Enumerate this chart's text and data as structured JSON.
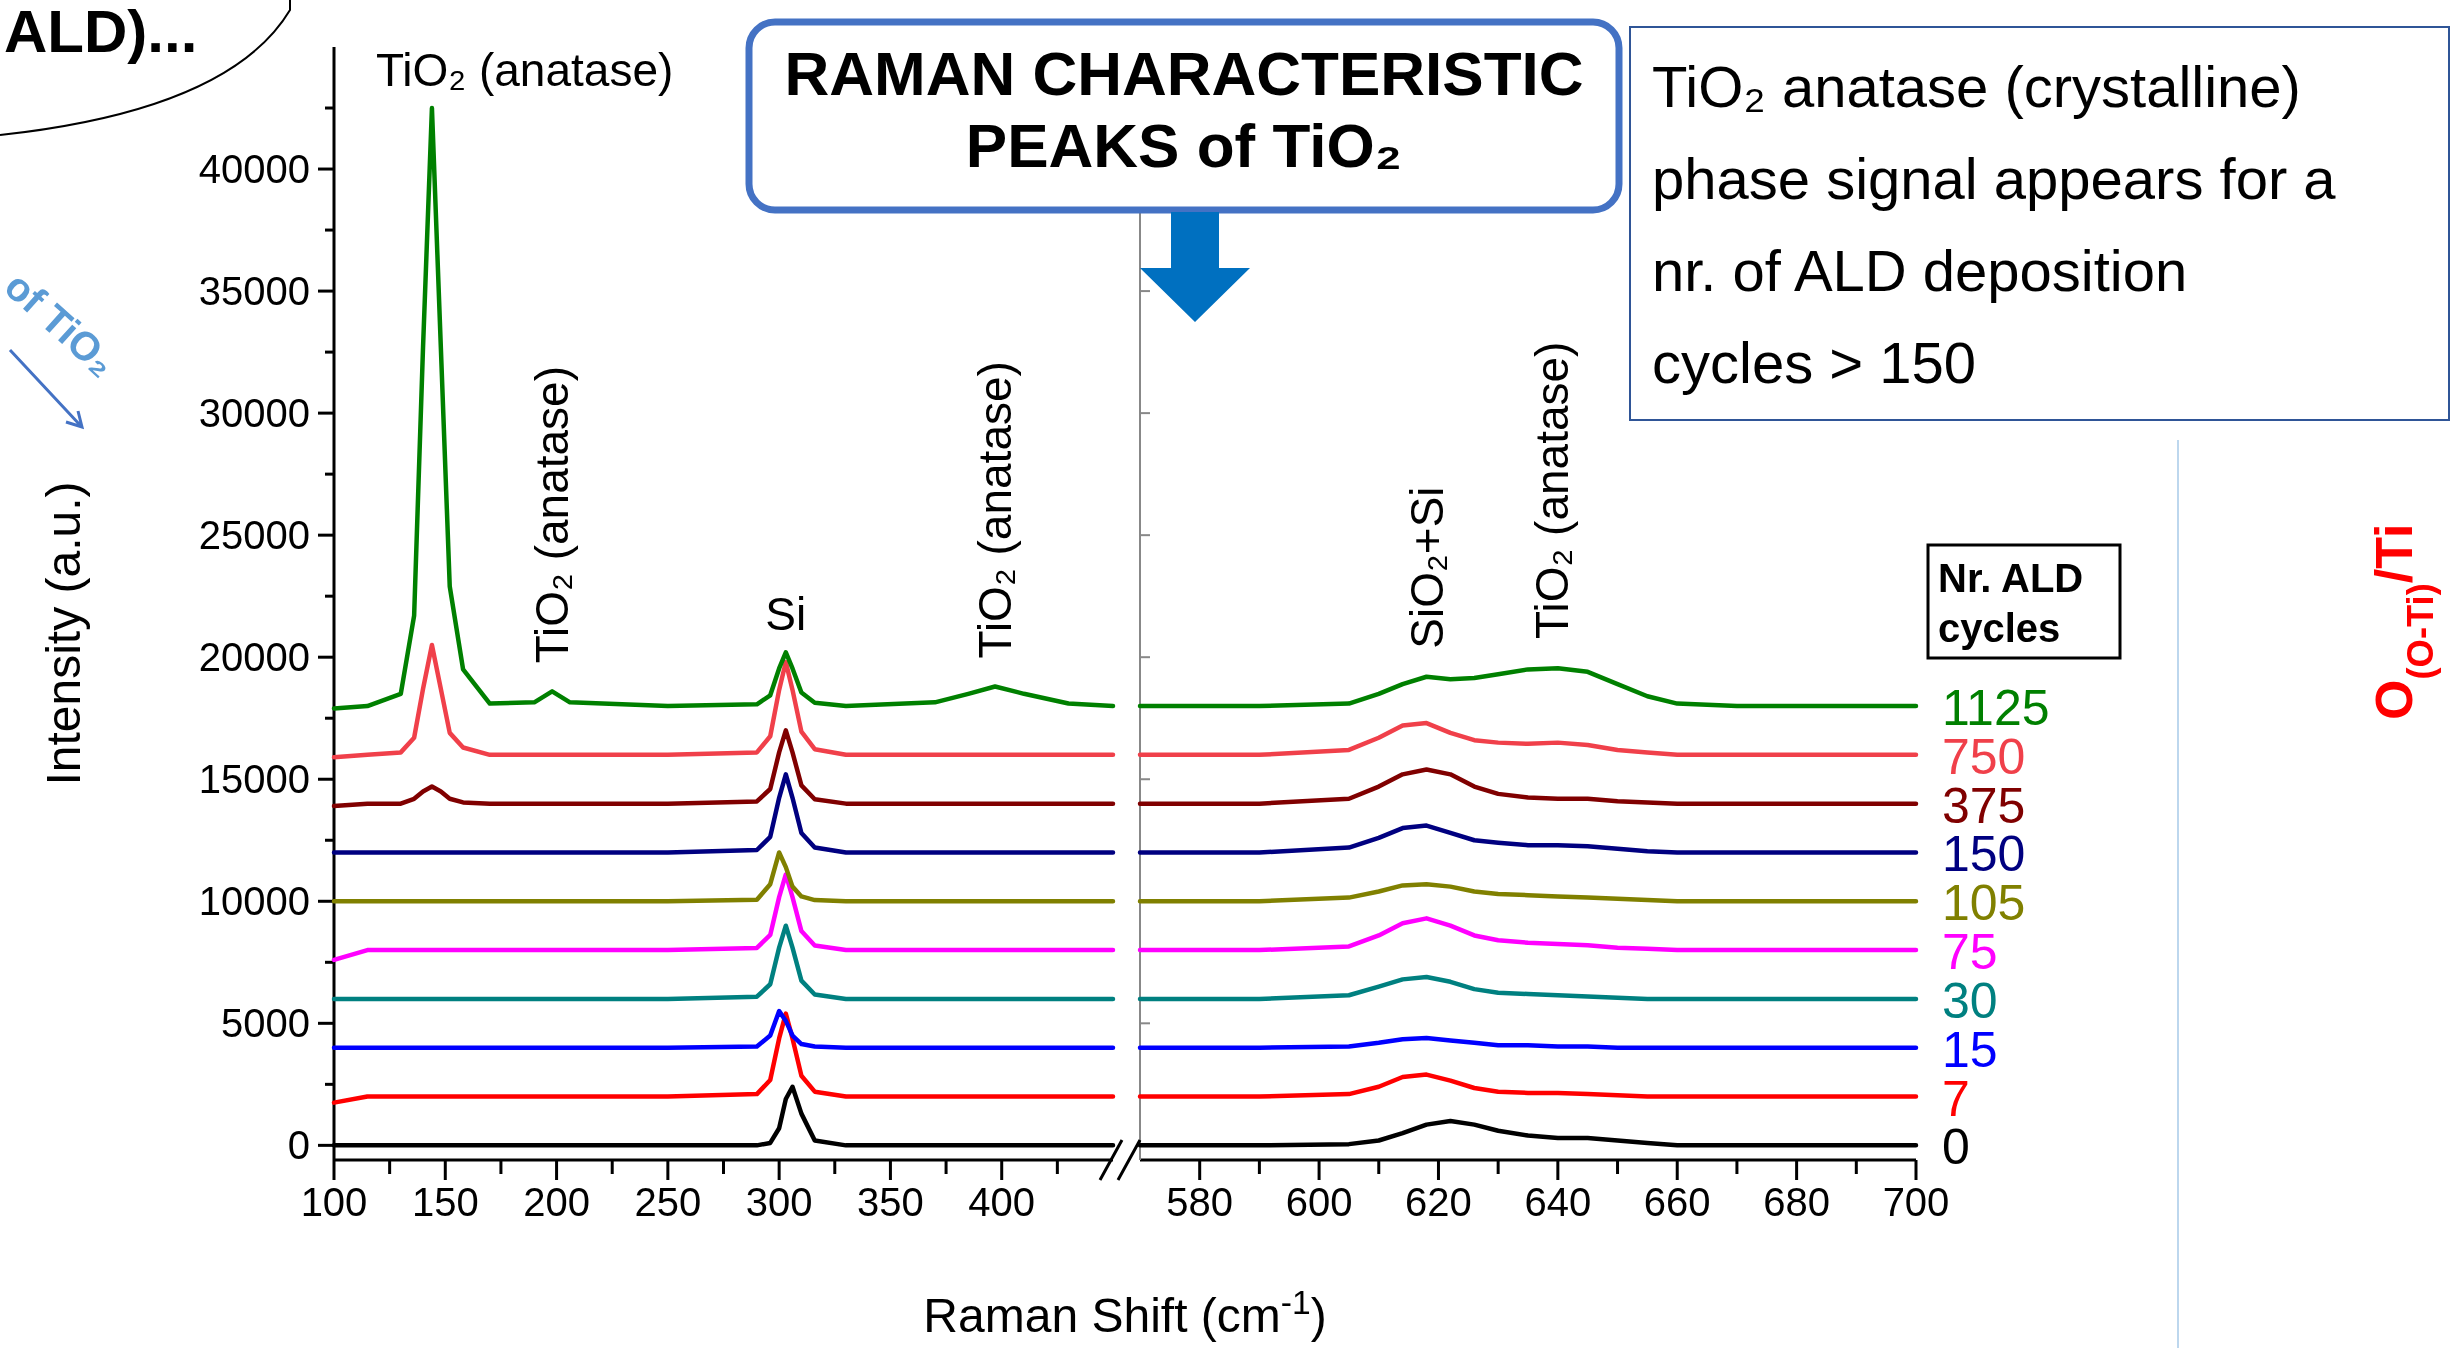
{
  "chart_data": [
    {
      "type": "line",
      "title": "RAMAN CHARACTERISTIC PEAKS of TiO₂",
      "xlabel": "Raman Shift (cm$^{-1}$)",
      "ylabel": "Intensity (a.u.)",
      "xlim": [
        100,
        450
      ],
      "xticks": [
        100,
        {
          "value": 125,
          "label": null
        },
        150,
        {
          "value": 175,
          "label": null
        },
        200,
        {
          "value": 225,
          "label": null
        },
        250,
        {
          "value": 275,
          "label": null
        },
        300,
        {
          "value": 325,
          "label": null
        },
        350,
        {
          "value": 375,
          "label": null
        },
        400,
        {
          "value": 425,
          "label": null
        }
      ],
      "ylim": [
        -600,
        45000
      ],
      "yticks": [
        0,
        {
          "value": 2500,
          "label": null
        },
        5000,
        {
          "value": 7500,
          "label": null
        },
        10000,
        {
          "value": 12500,
          "label": null
        },
        15000,
        {
          "value": 17500,
          "label": null
        },
        20000,
        {
          "value": 22500,
          "label": null
        },
        25000,
        {
          "value": 27500,
          "label": null
        },
        30000,
        {
          "value": 32500,
          "label": null
        },
        35000,
        {
          "value": 37500,
          "label": null
        },
        40000,
        {
          "value": 42500,
          "label": null
        }
      ],
      "x": [
        100,
        115,
        130,
        136,
        140,
        144,
        148,
        152,
        158,
        170,
        190,
        198,
        206,
        250,
        290,
        296,
        300,
        303,
        306,
        310,
        316,
        330,
        370,
        385,
        397,
        410,
        430,
        450
      ],
      "series": [
        {
          "color": "#000000",
          "values": [
            0,
            0,
            0,
            0,
            0,
            0,
            0,
            0,
            0,
            0,
            0,
            0,
            0,
            0,
            0,
            100,
            700,
            1900,
            2400,
            1300,
            200,
            0,
            0,
            0,
            0,
            0,
            0,
            0
          ]
        },
        {
          "color": "#ff0000",
          "values": [
            1750,
            2000,
            2000,
            2000,
            2000,
            2000,
            2000,
            2000,
            2000,
            2000,
            2000,
            2000,
            2000,
            2000,
            2100,
            2680,
            4380,
            5400,
            4380,
            2850,
            2200,
            2000,
            2000,
            2000,
            2000,
            2000,
            2000,
            2000
          ]
        },
        {
          "color": "#0000ff",
          "values": [
            4000,
            4000,
            4000,
            4000,
            4000,
            4000,
            4000,
            4000,
            4000,
            4000,
            4000,
            4000,
            4000,
            4000,
            4050,
            4500,
            5500,
            5100,
            4500,
            4150,
            4050,
            4000,
            4000,
            4000,
            4000,
            4000,
            4000,
            4000
          ]
        },
        {
          "color": "#008080",
          "values": [
            6000,
            6000,
            6000,
            6000,
            6000,
            6000,
            6000,
            6000,
            6000,
            6000,
            6000,
            6000,
            6000,
            6000,
            6090,
            6600,
            8100,
            9000,
            8100,
            6750,
            6180,
            6000,
            6000,
            6000,
            6000,
            6000,
            6000,
            6000
          ]
        },
        {
          "color": "#ff00ff",
          "values": [
            7600,
            8000,
            8000,
            8000,
            8000,
            8000,
            8000,
            8000,
            8000,
            8000,
            8000,
            8000,
            8000,
            8000,
            8090,
            8620,
            10170,
            11100,
            10170,
            8780,
            8190,
            8000,
            8000,
            8000,
            8000,
            8000,
            8000,
            8000
          ]
        },
        {
          "color": "#808000",
          "values": [
            10000,
            10000,
            10000,
            10000,
            10000,
            10000,
            10000,
            10000,
            10000,
            10000,
            10000,
            10000,
            10000,
            10000,
            10060,
            10700,
            12000,
            11400,
            10600,
            10200,
            10050,
            10000,
            10000,
            10000,
            10000,
            10000,
            10000,
            10000
          ]
        },
        {
          "color": "#000080",
          "values": [
            12000,
            12000,
            12000,
            12000,
            12000,
            12000,
            12000,
            12000,
            12000,
            12000,
            12000,
            12000,
            12000,
            12000,
            12100,
            12640,
            14240,
            15200,
            14240,
            12800,
            12200,
            12000,
            12000,
            12000,
            12000,
            12000,
            12000,
            12000
          ]
        },
        {
          "color": "#800000",
          "values": [
            13900,
            14000,
            14000,
            14200,
            14500,
            14700,
            14500,
            14200,
            14050,
            14000,
            14000,
            14000,
            14000,
            14000,
            14090,
            14600,
            16100,
            17000,
            16100,
            14750,
            14180,
            14000,
            14000,
            14000,
            14000,
            14000,
            14000,
            14000
          ]
        },
        {
          "color": "#f0404a",
          "values": [
            15900,
            16000,
            16100,
            16700,
            18700,
            20500,
            18700,
            16900,
            16300,
            16000,
            16000,
            16000,
            16000,
            16000,
            16100,
            16760,
            18660,
            19800,
            18660,
            16950,
            16230,
            16000,
            16000,
            16000,
            16000,
            16000,
            16000,
            16000
          ]
        },
        {
          "color": "#008000",
          "values": [
            17900,
            18000,
            18500,
            21700,
            32700,
            42500,
            32700,
            22900,
            19500,
            18100,
            18150,
            18600,
            18150,
            18000,
            18070,
            18440,
            19540,
            20200,
            19540,
            18550,
            18130,
            18000,
            18150,
            18500,
            18800,
            18500,
            18100,
            18000
          ]
        }
      ],
      "annotations": [
        {
          "text": "TiO₂ (anatase)",
          "x": 144,
          "y": 42500
        },
        {
          "text": "TiO₂ (anatase)",
          "x": 198,
          "y": 18600
        },
        {
          "text": "Si",
          "x": 303,
          "y": 20200
        },
        {
          "text": "TiO₂ (anatase)",
          "x": 397,
          "y": 18800
        },
        "ALD)...",
        "of TiO₂"
      ]
    },
    {
      "type": "line",
      "legend_title": "Nr. ALD cycles",
      "legend": "right",
      "tick_labels": "x",
      "xlim": [
        570,
        700
      ],
      "xticks": [
        580,
        {
          "value": 590,
          "label": null
        },
        600,
        {
          "value": 610,
          "label": null
        },
        620,
        {
          "value": 630,
          "label": null
        },
        640,
        {
          "value": 650,
          "label": null
        },
        660,
        {
          "value": 670,
          "label": null
        },
        680,
        {
          "value": 690,
          "label": null
        },
        700
      ],
      "ylim": [
        -600,
        45000
      ],
      "yticks": [
        0,
        5000,
        10000,
        15000,
        20000,
        25000,
        30000,
        35000,
        40000
      ],
      "x": [
        570,
        590,
        605,
        610,
        614,
        618,
        622,
        626,
        630,
        635,
        640,
        645,
        650,
        655,
        660,
        670,
        685,
        700
      ],
      "series": [
        {
          "name": "0",
          "color": "#000000",
          "values": [
            0,
            0,
            50,
            200,
            500,
            850,
            1000,
            850,
            600,
            400,
            300,
            300,
            200,
            100,
            0,
            0,
            0,
            0
          ]
        },
        {
          "name": "7",
          "color": "#ff0000",
          "values": [
            2000,
            2000,
            2100,
            2400,
            2800,
            2900,
            2650,
            2350,
            2200,
            2150,
            2150,
            2100,
            2050,
            2000,
            2000,
            2000,
            2000,
            2000
          ]
        },
        {
          "name": "15",
          "color": "#0000ff",
          "values": [
            4000,
            4000,
            4050,
            4200,
            4350,
            4400,
            4300,
            4200,
            4100,
            4100,
            4050,
            4050,
            4000,
            4000,
            4000,
            4000,
            4000,
            4000
          ]
        },
        {
          "name": "30",
          "color": "#008080",
          "values": [
            6000,
            6000,
            6150,
            6500,
            6800,
            6900,
            6700,
            6400,
            6250,
            6200,
            6150,
            6100,
            6050,
            6000,
            6000,
            6000,
            6000,
            6000
          ]
        },
        {
          "name": "75",
          "color": "#ff00ff",
          "values": [
            8000,
            8000,
            8150,
            8600,
            9100,
            9300,
            9000,
            8600,
            8400,
            8300,
            8250,
            8200,
            8100,
            8050,
            8000,
            8000,
            8000,
            8000
          ]
        },
        {
          "name": "105",
          "color": "#808000",
          "values": [
            10000,
            10000,
            10150,
            10400,
            10650,
            10700,
            10600,
            10400,
            10300,
            10250,
            10200,
            10150,
            10100,
            10050,
            10000,
            10000,
            10000,
            10000
          ]
        },
        {
          "name": "150",
          "color": "#000080",
          "values": [
            12000,
            12000,
            12200,
            12600,
            13000,
            13100,
            12800,
            12500,
            12400,
            12300,
            12300,
            12250,
            12150,
            12050,
            12000,
            12000,
            12000,
            12000
          ]
        },
        {
          "name": "375",
          "color": "#800000",
          "values": [
            14000,
            14000,
            14200,
            14700,
            15200,
            15400,
            15200,
            14700,
            14400,
            14250,
            14200,
            14200,
            14100,
            14050,
            14000,
            14000,
            14000,
            14000
          ]
        },
        {
          "name": "750",
          "color": "#f0404a",
          "values": [
            16000,
            16000,
            16200,
            16700,
            17200,
            17300,
            16900,
            16600,
            16500,
            16450,
            16500,
            16400,
            16200,
            16100,
            16000,
            16000,
            16000,
            16000
          ]
        },
        {
          "name": "1125",
          "color": "#008000",
          "values": [
            18000,
            18000,
            18100,
            18500,
            18900,
            19200,
            19100,
            19150,
            19300,
            19500,
            19550,
            19400,
            18900,
            18400,
            18100,
            18000,
            18000,
            18000
          ]
        }
      ],
      "annotations": [
        {
          "text": "SiO₂+Si",
          "x": 618,
          "y": 19200
        },
        {
          "text": "TiO₂ (anatase)",
          "x": 639,
          "y": 19600
        },
        "TiO₂ anatase (crystalline) phase signal appears for a nr. of ALD deposition cycles > 150",
        "O$_{(O-Ti)}$/Ti"
      ]
    }
  ]
}
